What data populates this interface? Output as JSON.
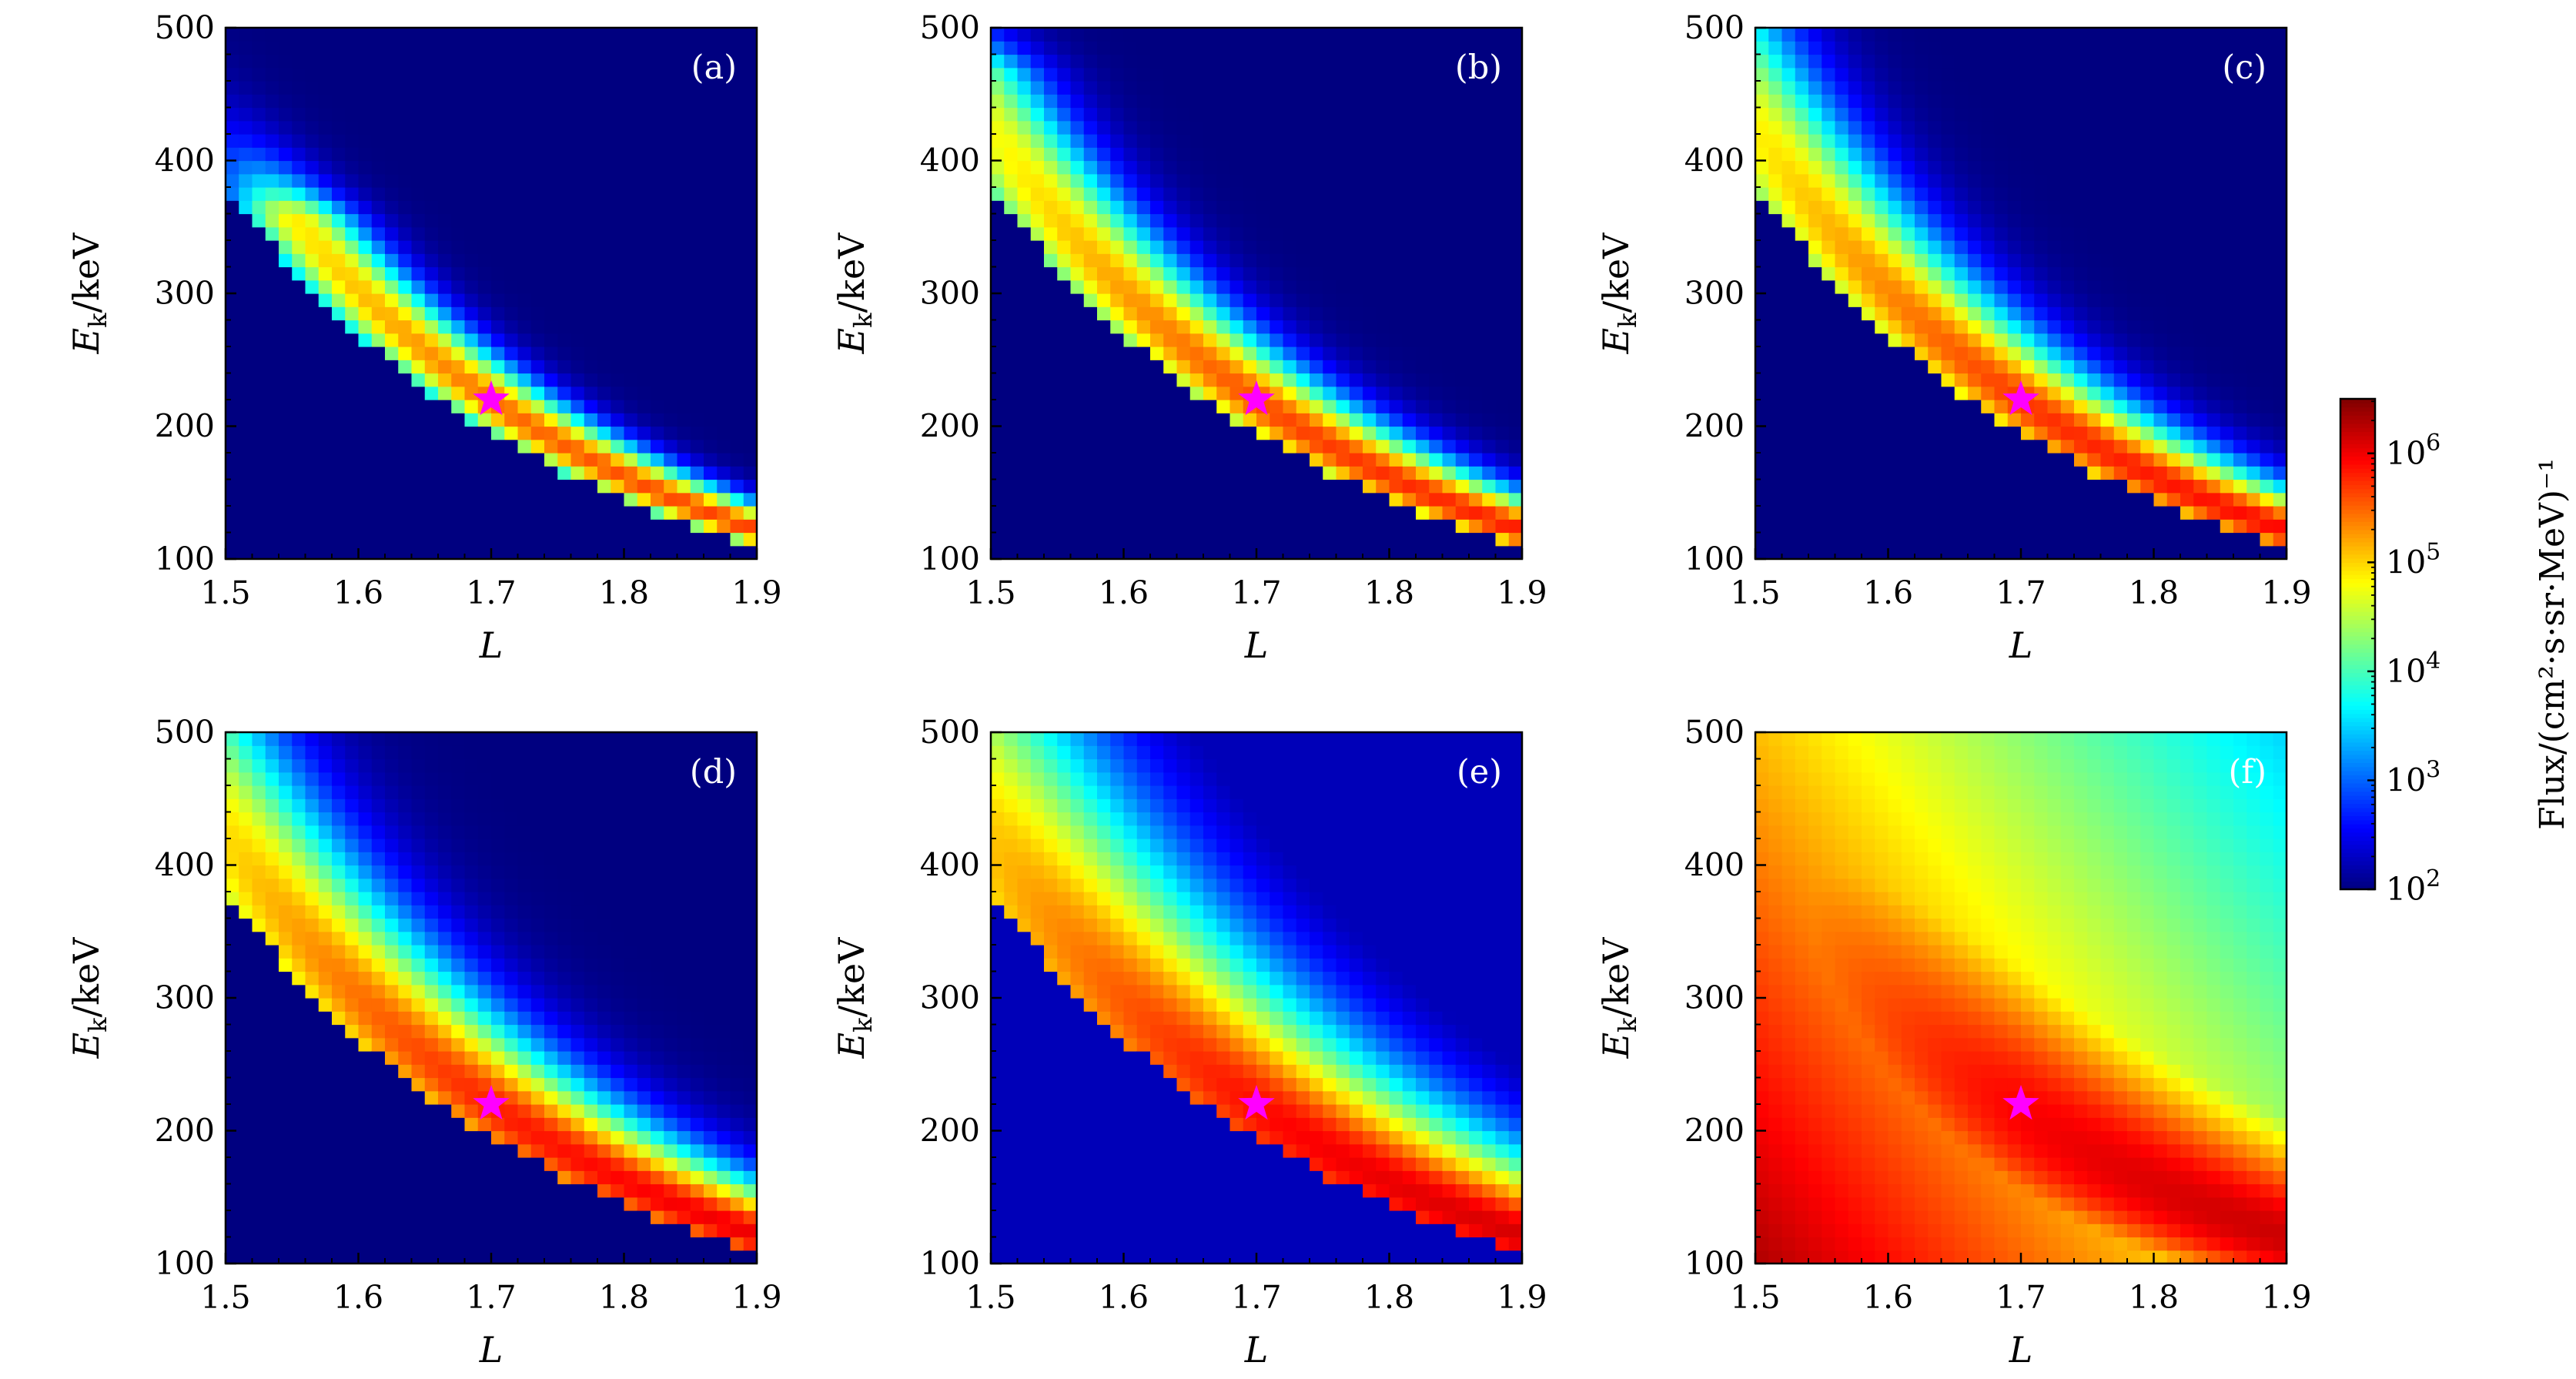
{
  "chart_data": {
    "type": "heatmap",
    "layout": "2x3 grid of panels sharing a colorbar",
    "panels": [
      {
        "label": "(a)",
        "ridge_spread": 0.018,
        "peak_log_flux": 5.7,
        "ridge_max_energy": 360,
        "lower_cutoff": true,
        "background": "none"
      },
      {
        "label": "(b)",
        "ridge_spread": 0.024,
        "peak_log_flux": 5.85,
        "ridge_max_energy": 470,
        "lower_cutoff": true,
        "background": "none"
      },
      {
        "label": "(c)",
        "ridge_spread": 0.028,
        "peak_log_flux": 5.95,
        "ridge_max_energy": 500,
        "lower_cutoff": true,
        "background": "none"
      },
      {
        "label": "(d)",
        "ridge_spread": 0.034,
        "peak_log_flux": 6.05,
        "ridge_max_energy": 500,
        "lower_cutoff": true,
        "background": "none"
      },
      {
        "label": "(e)",
        "ridge_spread": 0.05,
        "peak_log_flux": 6.15,
        "ridge_max_energy": 500,
        "lower_cutoff": true,
        "background": "low"
      },
      {
        "label": "(f)",
        "ridge_spread": 0.09,
        "peak_log_flux": 6.2,
        "ridge_max_energy": 500,
        "lower_cutoff": false,
        "background": "high"
      }
    ],
    "x_axis": {
      "label": "L",
      "range": [
        1.5,
        1.9
      ],
      "ticks": [
        "1.5",
        "1.6",
        "1.7",
        "1.8",
        "1.9"
      ]
    },
    "y_axis": {
      "label_main": "E",
      "label_sub": "k",
      "label_rest": "/keV",
      "range": [
        100,
        500
      ],
      "ticks": [
        "100",
        "200",
        "300",
        "400",
        "500"
      ]
    },
    "marker": {
      "symbol": "star",
      "color": "#ff00ff",
      "L": 1.7,
      "E": 220
    },
    "colorbar": {
      "scale": "log",
      "range_log10": [
        2,
        6.5
      ],
      "colormap": "jet",
      "label": "Flux/(cm²·s·sr·MeV)⁻¹",
      "ticks": [
        {
          "base": "10",
          "exp": "2",
          "value": 2
        },
        {
          "base": "10",
          "exp": "3",
          "value": 3
        },
        {
          "base": "10",
          "exp": "4",
          "value": 4
        },
        {
          "base": "10",
          "exp": "5",
          "value": 5
        },
        {
          "base": "10",
          "exp": "6",
          "value": 6
        }
      ]
    },
    "grid": false
  }
}
